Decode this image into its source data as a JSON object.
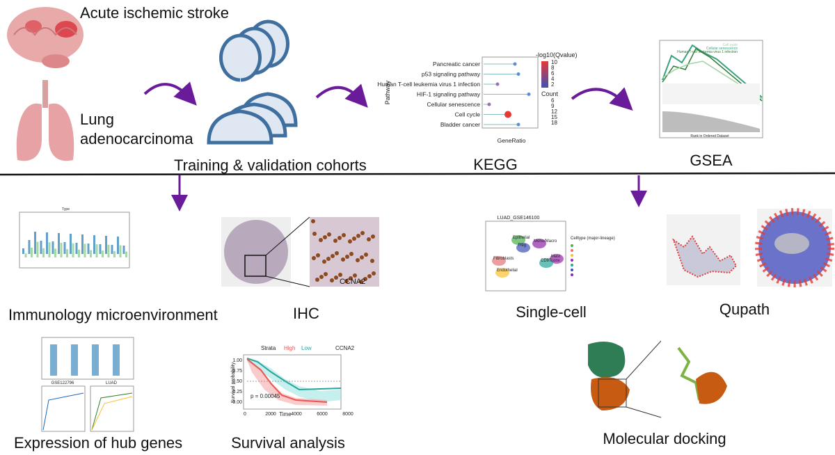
{
  "stroke_label": "Acute ischemic stroke",
  "luad_label": "Lung adenocarcinoma",
  "cohorts_label": "Training & validation cohorts",
  "kegg": {
    "label": "KEGG",
    "y_axis_title": "Pathway",
    "x_axis_title": "GeneRatio",
    "pathways": [
      "Pancreatic cancer",
      "p53 signaling pathway",
      "Human T-cell leukemia virus 1 infection",
      "HIF-1 signaling pathway",
      "Cellular senescence",
      "Cell cycle",
      "Bladder cancer"
    ],
    "color_title": "-log10(Qvalue)",
    "color_ticks": [
      "10",
      "8",
      "6",
      "4",
      "2"
    ],
    "size_title": "Count",
    "size_ticks": [
      "6",
      "9",
      "12",
      "15",
      "18"
    ]
  },
  "gsea": {
    "label": "GSEA",
    "legend": [
      "Cell cycle",
      "Cellular senescence",
      "Human T-cell leukemia virus 1 infection"
    ],
    "x_axis_title": "Rank in Ordered Dataset"
  },
  "immunology": {
    "label": "Immunology microenvironment",
    "legend_title": "Type"
  },
  "ihc": {
    "label": "IHC",
    "gene": "CCNA2"
  },
  "single_cell": {
    "label": "Single-cell",
    "title": "LUAD_GSE146100",
    "legend_title": "Celltype (major-lineage)",
    "clusters": [
      "Epithelial",
      "Fibroblasts",
      "Endothelial",
      "Mast",
      "CD8Tconv",
      "Treg",
      "Mono/Macro"
    ]
  },
  "qupath": {
    "label": "Qupath"
  },
  "hub_genes": {
    "label": "Expression of hub genes",
    "panels": [
      "GSE122796",
      "LUAD"
    ]
  },
  "survival": {
    "label": "Survival analysis",
    "legend_title": "Strata",
    "strata": [
      "High",
      "Low"
    ],
    "gene": "CCNA2",
    "y_axis_title": "Survival probability",
    "x_axis_title": "Time",
    "p_value": "p = 0.00045",
    "yticks": [
      "1.00",
      "0.75",
      "0.50",
      "0.25",
      "0.00"
    ],
    "xticks": [
      "0",
      "2000",
      "4000",
      "6000",
      "8000"
    ]
  },
  "docking": {
    "label": "Molecular docking"
  }
}
